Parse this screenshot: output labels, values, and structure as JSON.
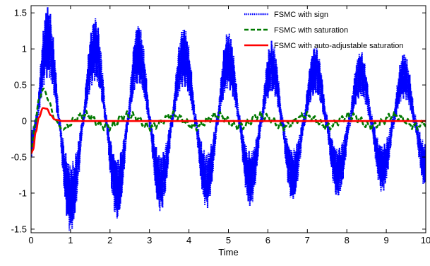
{
  "chart_data": {
    "type": "line",
    "title": "",
    "xlabel": "Time",
    "ylabel": "",
    "xlim": [
      0,
      10
    ],
    "ylim": [
      -1.55,
      1.6
    ],
    "x_ticks": [
      "0",
      "1",
      "2",
      "3",
      "4",
      "5",
      "6",
      "7",
      "8",
      "9",
      "10"
    ],
    "y_ticks": [
      "-1.5",
      "-1",
      "-0.5",
      "0",
      "0.5",
      "1",
      "1.5"
    ],
    "grid": false,
    "legend_position": "top-right",
    "series": [
      {
        "name": "FSMC with sign",
        "color": "#0000ff",
        "style": "dotted",
        "envelope_peaks": [
          {
            "t": 0.0,
            "v": -0.5
          },
          {
            "t": 0.42,
            "v": 1.6
          },
          {
            "t": 1.0,
            "v": -1.55
          },
          {
            "t": 1.62,
            "v": 1.45
          },
          {
            "t": 2.18,
            "v": -1.38
          },
          {
            "t": 2.72,
            "v": 1.37
          },
          {
            "t": 3.28,
            "v": -1.27
          },
          {
            "t": 3.87,
            "v": 1.32
          },
          {
            "t": 4.45,
            "v": -1.22
          },
          {
            "t": 5.0,
            "v": 1.25
          },
          {
            "t": 5.55,
            "v": -1.2
          },
          {
            "t": 6.1,
            "v": 1.12
          },
          {
            "t": 6.62,
            "v": -1.12
          },
          {
            "t": 7.2,
            "v": 1.05
          },
          {
            "t": 7.77,
            "v": -1.08
          },
          {
            "t": 8.35,
            "v": 0.98
          },
          {
            "t": 8.9,
            "v": -1.0
          },
          {
            "t": 9.45,
            "v": 0.95
          },
          {
            "t": 10.0,
            "v": -0.95
          }
        ]
      },
      {
        "name": "FSMC with saturation",
        "color": "#007a00",
        "style": "dashed",
        "initial_points": [
          {
            "t": 0.0,
            "v": -0.45
          },
          {
            "t": 0.1,
            "v": -0.05
          },
          {
            "t": 0.2,
            "v": 0.3
          },
          {
            "t": 0.32,
            "v": 0.45
          },
          {
            "t": 0.45,
            "v": 0.28
          },
          {
            "t": 0.6,
            "v": 0.02
          },
          {
            "t": 0.8,
            "v": -0.12
          }
        ],
        "steady_oscillation_amplitude": 0.1
      },
      {
        "name": "FSMC with auto-adjustable saturation",
        "color": "#ff0000",
        "style": "solid",
        "points": [
          {
            "t": 0.0,
            "v": -0.45
          },
          {
            "t": 0.05,
            "v": -0.4
          },
          {
            "t": 0.12,
            "v": -0.15
          },
          {
            "t": 0.2,
            "v": 0.05
          },
          {
            "t": 0.3,
            "v": 0.18
          },
          {
            "t": 0.4,
            "v": 0.17
          },
          {
            "t": 0.5,
            "v": 0.08
          },
          {
            "t": 0.6,
            "v": 0.02
          },
          {
            "t": 0.8,
            "v": 0.0
          },
          {
            "t": 10.0,
            "v": 0.0
          }
        ]
      }
    ]
  }
}
